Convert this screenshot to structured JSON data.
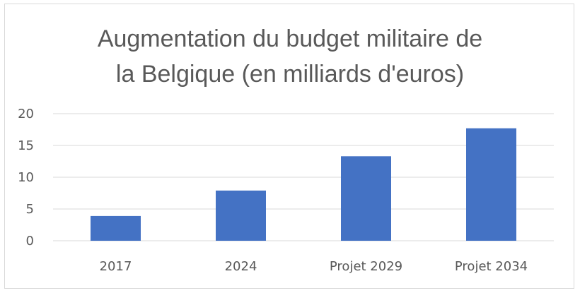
{
  "chart_data": {
    "type": "bar",
    "title": "Augmentation du budget militaire de\nla Belgique (en milliards d'euros)",
    "categories": [
      "2017",
      "2024",
      "Projet 2029",
      "Projet 2034"
    ],
    "values": [
      3.9,
      7.9,
      13.3,
      17.7
    ],
    "ylim": [
      0,
      20
    ],
    "yticks": [
      0,
      5,
      10,
      15,
      20
    ],
    "grid": true,
    "legend": "none",
    "bar_color": "#4472C4",
    "grid_color": "#d9d9d9",
    "text_color": "#595959"
  }
}
